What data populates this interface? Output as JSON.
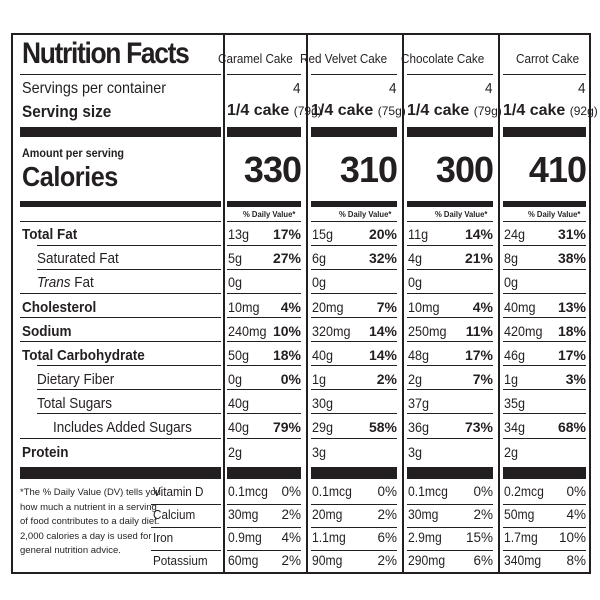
{
  "title": "Nutrition Facts",
  "labels": {
    "servings_per_container": "Servings per container",
    "serving_size": "Serving size",
    "amount_per_serving": "Amount per serving",
    "calories": "Calories",
    "daily_value_header": "% Daily Value*",
    "total_fat": "Total Fat",
    "saturated_fat": "Saturated Fat",
    "trans_fat_italic": "Trans",
    "trans_fat_rest": " Fat",
    "cholesterol": "Cholesterol",
    "sodium": "Sodium",
    "total_carbohydrate": "Total Carbohydrate",
    "dietary_fiber": "Dietary Fiber",
    "total_sugars": "Total Sugars",
    "added_sugars": "Includes Added Sugars",
    "protein": "Protein",
    "vitamin_d": "Vitamin D",
    "calcium": "Calcium",
    "iron": "Iron",
    "potassium": "Potassium",
    "footnote_1": "*The % Daily Value (DV) tells you",
    "footnote_2": "how much a nutrient in a serving",
    "footnote_3": "of food contributes to a daily diet.",
    "footnote_4": "2,000 calories a day is used for",
    "footnote_5": "general nutrition advice."
  },
  "products": [
    {
      "name": "Caramel Cake",
      "servings": "4",
      "serving_size": "1/4 cake",
      "serving_grams": "(79g)",
      "calories": "330",
      "total_fat": "13g",
      "total_fat_dv": "17%",
      "sat_fat": "5g",
      "sat_fat_dv": "27%",
      "trans_fat": "0g",
      "cholesterol": "10mg",
      "cholesterol_dv": "4%",
      "sodium": "240mg",
      "sodium_dv": "10%",
      "carb": "50g",
      "carb_dv": "18%",
      "fiber": "0g",
      "fiber_dv": "0%",
      "sugars": "40g",
      "added_sugars": "40g",
      "added_sugars_dv": "79%",
      "protein": "2g",
      "vit_d": "0.1mcg",
      "vit_d_dv": "0%",
      "calcium": "30mg",
      "calcium_dv": "2%",
      "iron": "0.9mg",
      "iron_dv": "4%",
      "potassium": "60mg",
      "potassium_dv": "2%"
    },
    {
      "name": "Red Velvet Cake",
      "servings": "4",
      "serving_size": "1/4 cake",
      "serving_grams": "(75g)",
      "calories": "310",
      "total_fat": "15g",
      "total_fat_dv": "20%",
      "sat_fat": "6g",
      "sat_fat_dv": "32%",
      "trans_fat": "0g",
      "cholesterol": "20mg",
      "cholesterol_dv": "7%",
      "sodium": "320mg",
      "sodium_dv": "14%",
      "carb": "40g",
      "carb_dv": "14%",
      "fiber": "1g",
      "fiber_dv": "2%",
      "sugars": "30g",
      "added_sugars": "29g",
      "added_sugars_dv": "58%",
      "protein": "3g",
      "vit_d": "0.1mcg",
      "vit_d_dv": "0%",
      "calcium": "20mg",
      "calcium_dv": "2%",
      "iron": "1.1mg",
      "iron_dv": "6%",
      "potassium": "90mg",
      "potassium_dv": "2%"
    },
    {
      "name": "Chocolate Cake",
      "servings": "4",
      "serving_size": "1/4 cake",
      "serving_grams": "(79g)",
      "calories": "300",
      "total_fat": "11g",
      "total_fat_dv": "14%",
      "sat_fat": "4g",
      "sat_fat_dv": "21%",
      "trans_fat": "0g",
      "cholesterol": "10mg",
      "cholesterol_dv": "4%",
      "sodium": "250mg",
      "sodium_dv": "11%",
      "carb": "48g",
      "carb_dv": "17%",
      "fiber": "2g",
      "fiber_dv": "7%",
      "sugars": "37g",
      "added_sugars": "36g",
      "added_sugars_dv": "73%",
      "protein": "3g",
      "vit_d": "0.1mcg",
      "vit_d_dv": "0%",
      "calcium": "30mg",
      "calcium_dv": "2%",
      "iron": "2.9mg",
      "iron_dv": "15%",
      "potassium": "290mg",
      "potassium_dv": "6%"
    },
    {
      "name": "Carrot Cake",
      "servings": "4",
      "serving_size": "1/4 cake",
      "serving_grams": "(92g)",
      "calories": "410",
      "total_fat": "24g",
      "total_fat_dv": "31%",
      "sat_fat": "8g",
      "sat_fat_dv": "38%",
      "trans_fat": "0g",
      "cholesterol": "40mg",
      "cholesterol_dv": "13%",
      "sodium": "420mg",
      "sodium_dv": "18%",
      "carb": "46g",
      "carb_dv": "17%",
      "fiber": "1g",
      "fiber_dv": "3%",
      "sugars": "35g",
      "added_sugars": "34g",
      "added_sugars_dv": "68%",
      "protein": "2g",
      "vit_d": "0.2mcg",
      "vit_d_dv": "0%",
      "calcium": "50mg",
      "calcium_dv": "4%",
      "iron": "1.7mg",
      "iron_dv": "10%",
      "potassium": "340mg",
      "potassium_dv": "8%"
    }
  ]
}
